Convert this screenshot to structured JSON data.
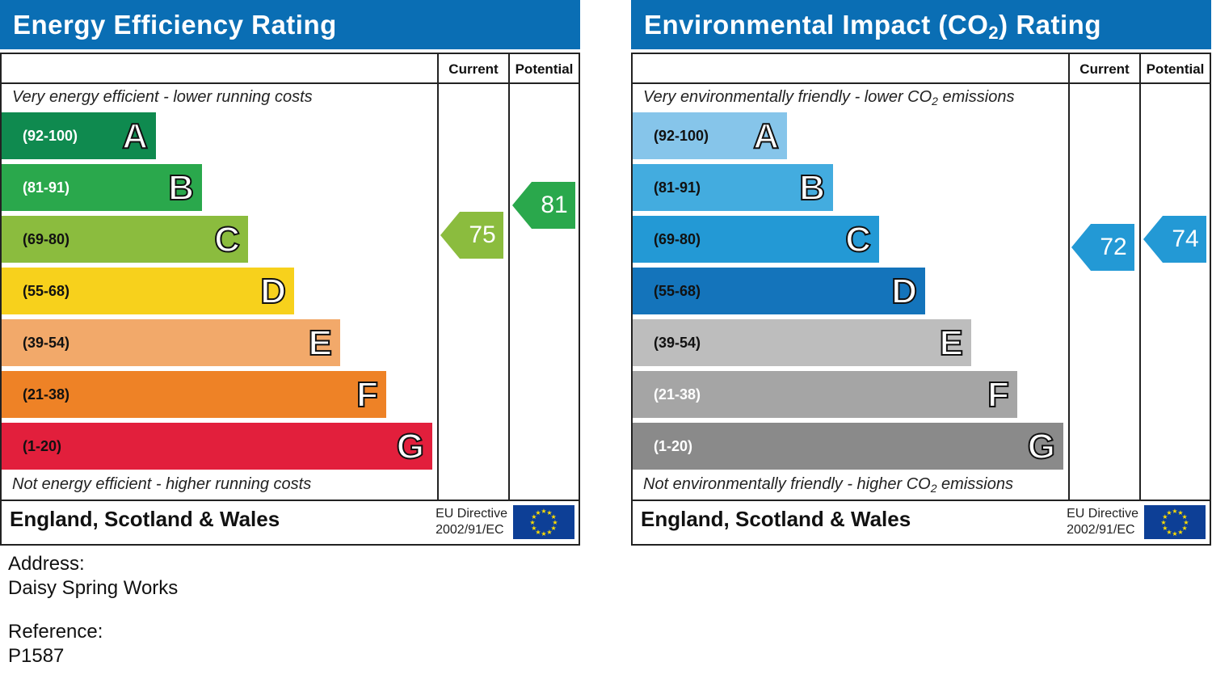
{
  "energy": {
    "title": "Energy Efficiency Rating",
    "col_current": "Current",
    "col_potential": "Potential",
    "top_caption": "Very energy efficient - lower running costs",
    "bottom_caption": "Not energy efficient - higher running costs",
    "bands": [
      {
        "range": "(92-100)",
        "letter": "A",
        "color": "#0f8a4f"
      },
      {
        "range": "(81-91)",
        "letter": "B",
        "color": "#2aa84c"
      },
      {
        "range": "(69-80)",
        "letter": "C",
        "color": "#8bbc3e"
      },
      {
        "range": "(55-68)",
        "letter": "D",
        "color": "#f7d11c"
      },
      {
        "range": "(39-54)",
        "letter": "E",
        "color": "#f2a96a"
      },
      {
        "range": "(21-38)",
        "letter": "F",
        "color": "#ee8226"
      },
      {
        "range": "(1-20)",
        "letter": "G",
        "color": "#e21f3c"
      }
    ],
    "current": {
      "value": "75",
      "color": "#8bbc3e"
    },
    "potential": {
      "value": "81",
      "color": "#2aa84c"
    },
    "footer_country": "England, Scotland & Wales",
    "footer_directive_1": "EU Directive",
    "footer_directive_2": "2002/91/EC"
  },
  "environment": {
    "title_pre": "Environmental Impact (CO",
    "title_sub": "2",
    "title_post": ") Rating",
    "col_current": "Current",
    "col_potential": "Potential",
    "top_caption_pre": "Very environmentally friendly - lower CO",
    "top_caption_sub": "2",
    "top_caption_post": " emissions",
    "bottom_caption_pre": "Not environmentally friendly - higher CO",
    "bottom_caption_sub": "2",
    "bottom_caption_post": " emissions",
    "bands": [
      {
        "range": "(92-100)",
        "letter": "A",
        "color": "#86c5ea"
      },
      {
        "range": "(81-91)",
        "letter": "B",
        "color": "#43acdf"
      },
      {
        "range": "(69-80)",
        "letter": "C",
        "color": "#2399d5"
      },
      {
        "range": "(55-68)",
        "letter": "D",
        "color": "#1474bb"
      },
      {
        "range": "(39-54)",
        "letter": "E",
        "color": "#bdbdbd"
      },
      {
        "range": "(21-38)",
        "letter": "F",
        "color": "#a5a5a5"
      },
      {
        "range": "(1-20)",
        "letter": "G",
        "color": "#8a8a8a"
      }
    ],
    "current": {
      "value": "72",
      "color": "#2399d5"
    },
    "potential": {
      "value": "74",
      "color": "#2399d5"
    },
    "footer_country": "England, Scotland & Wales",
    "footer_directive_1": "EU Directive",
    "footer_directive_2": "2002/91/EC"
  },
  "address_label": "Address:",
  "address_value": "Daisy Spring Works",
  "reference_label": "Reference:",
  "reference_value": "P1587"
}
